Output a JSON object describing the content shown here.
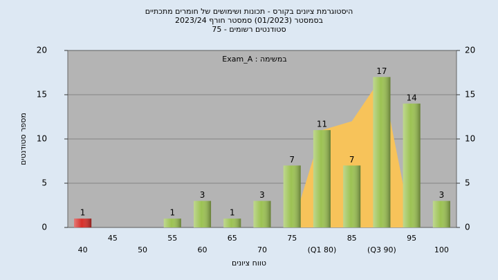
{
  "chart_data": {
    "type": "bar",
    "title": [
      "היסטוגרמת ציונים בקורס - תכונות ושימושים של חומרים מתכתיים",
      "בסמסטר  (01/2023)  סמסטר חורף  2023/24",
      "סטודנטים רשומים - 75"
    ],
    "annotation": "Exam_A : במשימה",
    "x_label": "טווח ציונים",
    "y_label": "מספר סטודנטים",
    "categories": [
      "40",
      "45",
      "50",
      "55",
      "60",
      "65",
      "70",
      "75",
      "(Q1 80)",
      "85",
      "(Q3 90)",
      "95",
      "100"
    ],
    "values": [
      1,
      null,
      null,
      1,
      3,
      1,
      3,
      7,
      11,
      7,
      17,
      14,
      3
    ],
    "colors": [
      "#d6302b",
      null,
      null,
      "#9cc253",
      "#9cc253",
      "#9cc253",
      "#9cc253",
      "#9cc253",
      "#9cc253",
      "#9cc253",
      "#9cc253",
      "#9cc253",
      "#9cc253"
    ],
    "area": {
      "color": "#f7c35a",
      "values": [
        null,
        null,
        null,
        null,
        null,
        null,
        null,
        0,
        11,
        12,
        17,
        0,
        null
      ]
    },
    "ylim": [
      0,
      20
    ],
    "yticks": [
      0,
      5,
      10,
      15,
      20
    ],
    "y2lim": [
      0,
      20
    ],
    "y2ticks": [
      0,
      5,
      10,
      15,
      20
    ],
    "grid": true
  }
}
